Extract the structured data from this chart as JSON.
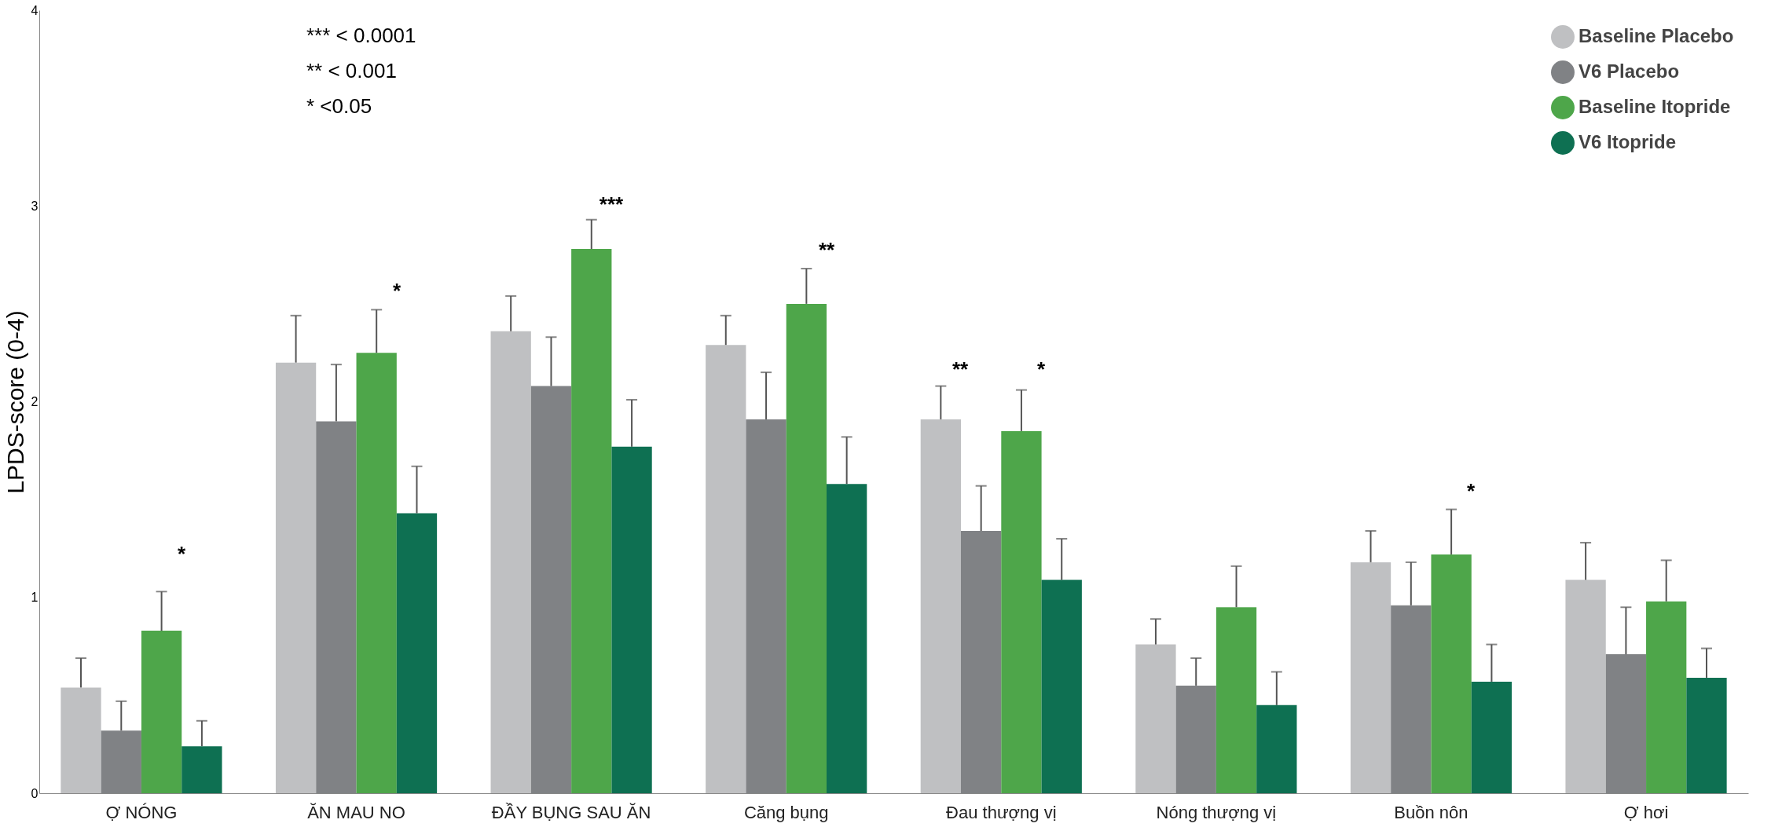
{
  "chart_data": {
    "type": "bar",
    "ylabel": "LPDS-score (0-4)",
    "categories": [
      "Ợ NÓNG",
      "ĂN MAU NO",
      "ĐẦY BỤNG SAU ĂN",
      "Căng bụng",
      "Đau thượng vị",
      "Nóng thượng vị",
      "Buồn nôn",
      "Ợ hơi"
    ],
    "series": [
      {
        "name": "Baseline Placebo",
        "color": "#bfc0c2",
        "values": [
          0.54,
          2.2,
          2.36,
          2.29,
          1.91,
          0.76,
          1.18,
          1.09
        ],
        "errors": [
          [
            0.54,
            0.69
          ],
          [
            2.2,
            2.44
          ],
          [
            2.36,
            2.54
          ],
          [
            2.29,
            2.44
          ],
          [
            1.91,
            2.08
          ],
          [
            0.76,
            0.89
          ],
          [
            1.18,
            1.34
          ],
          [
            1.09,
            1.28
          ]
        ]
      },
      {
        "name": "V6 Placebo",
        "color": "#808285",
        "values": [
          0.32,
          1.9,
          2.08,
          1.91,
          1.34,
          0.55,
          0.96,
          0.71
        ],
        "errors": [
          [
            0.32,
            0.47
          ],
          [
            1.9,
            2.19
          ],
          [
            2.08,
            2.33
          ],
          [
            1.91,
            2.15
          ],
          [
            1.34,
            1.57
          ],
          [
            0.55,
            0.69
          ],
          [
            0.96,
            1.18
          ],
          [
            0.71,
            0.95
          ]
        ]
      },
      {
        "name": "Baseline Itopride",
        "color": "#4ea64a",
        "values": [
          0.83,
          2.25,
          2.78,
          2.5,
          1.85,
          0.95,
          1.22,
          0.98
        ],
        "errors": [
          [
            0.83,
            1.03
          ],
          [
            2.25,
            2.47
          ],
          [
            2.78,
            2.93
          ],
          [
            2.5,
            2.68
          ],
          [
            1.85,
            2.06
          ],
          [
            0.95,
            1.16
          ],
          [
            1.22,
            1.45
          ],
          [
            0.98,
            1.19
          ]
        ]
      },
      {
        "name": "V6 Itopride",
        "color": "#0e7052",
        "values": [
          0.24,
          1.43,
          1.77,
          1.58,
          1.09,
          0.45,
          0.57,
          0.59
        ],
        "errors": [
          [
            0.24,
            0.37
          ],
          [
            1.43,
            1.67
          ],
          [
            1.77,
            2.01
          ],
          [
            1.58,
            1.82
          ],
          [
            1.09,
            1.3
          ],
          [
            0.45,
            0.62
          ],
          [
            0.57,
            0.76
          ],
          [
            0.59,
            0.74
          ]
        ]
      }
    ],
    "ylim": [
      0,
      4
    ],
    "yticks": [
      0,
      1,
      2,
      3,
      4
    ],
    "grid": false,
    "legend": "top right",
    "annotations": [
      "*** < 0.0001",
      "** < 0.001",
      "* <0.05",
      "*",
      "*",
      "***",
      "**",
      "**",
      "*",
      "*"
    ]
  }
}
